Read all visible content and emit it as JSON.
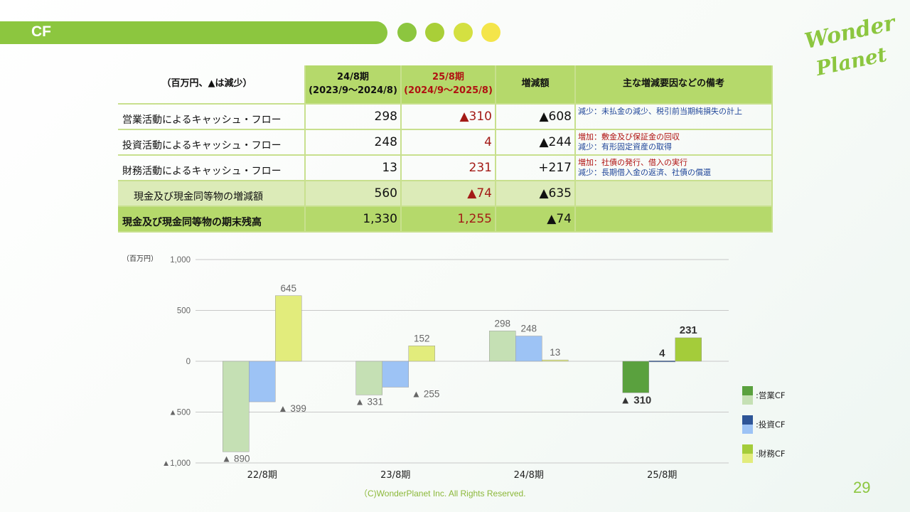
{
  "header": {
    "title": "CF",
    "dots": [
      "#8cc63f",
      "#a9cf38",
      "#d4e041",
      "#f4e54a"
    ],
    "logo_line1": "Wonder",
    "logo_line2": "Planet"
  },
  "table": {
    "unit_label": "（百万円、▲は減少）",
    "col1_line1": "24/8期",
    "col1_line2": "(2023/9～2024/8)",
    "col2_line1": "25/8期",
    "col2_line2": "(2024/9～2025/8)",
    "col3": "増減額",
    "col4": "主な増減要因などの備考",
    "rows": [
      {
        "label": "営業活動によるキャッシュ・フロー",
        "v24": "298",
        "v25": "▲310",
        "diff": "▲608",
        "note1": "減少：未払金の減少、税引前当期純損失の計上",
        "note2": ""
      },
      {
        "label": "投資活動によるキャッシュ・フロー",
        "v24": "248",
        "v25": "4",
        "diff": "▲244",
        "note1": "増加：敷金及び保証金の回収",
        "note2": "減少：有形固定資産の取得"
      },
      {
        "label": "財務活動によるキャッシュ・フロー",
        "v24": "13",
        "v25": "231",
        "diff": "+217",
        "note1": "増加：社債の発行、借入の実行",
        "note2": "減少：長期借入金の返済、社債の償還"
      },
      {
        "label": "現金及び現金同等物の増減額",
        "v24": "560",
        "v25": "▲74",
        "diff": "▲635",
        "note1": "",
        "note2": ""
      },
      {
        "label": "現金及び現金同等物の期末残高",
        "v24": "1,330",
        "v25": "1,255",
        "diff": "▲74",
        "note1": "",
        "note2": ""
      }
    ]
  },
  "chart_data": {
    "type": "bar",
    "unit_label": "（百万円）",
    "categories": [
      "22/8期",
      "23/8期",
      "24/8期",
      "25/8期"
    ],
    "ylim": [
      -1000,
      1000
    ],
    "yticks": [
      1000,
      500,
      0,
      -500,
      -1000
    ],
    "ytick_labels": [
      "1,000",
      "500",
      "0",
      "▲500",
      "▲1,000"
    ],
    "series": [
      {
        "name": "営業CF",
        "values": [
          -890,
          -331,
          298,
          -310
        ],
        "labels": [
          "▲ 890",
          "▲ 331",
          "298",
          "▲ 310"
        ],
        "colors": [
          "#c5e0b4",
          "#c5e0b4",
          "#c5e0b4",
          "#5aa13e"
        ]
      },
      {
        "name": "投資CF",
        "values": [
          -399,
          -255,
          248,
          4
        ],
        "labels": [
          "▲ 399",
          "▲ 255",
          "248",
          "4"
        ],
        "colors": [
          "#9dc3f5",
          "#9dc3f5",
          "#9dc3f5",
          "#2e5597"
        ]
      },
      {
        "name": "財務CF",
        "values": [
          645,
          152,
          13,
          231
        ],
        "labels": [
          "645",
          "152",
          "13",
          "231"
        ],
        "colors": [
          "#e2ec7c",
          "#e2ec7c",
          "#e2ec7c",
          "#a4cc3a"
        ]
      }
    ],
    "legend": [
      {
        "name": "営業CF",
        "dark": "#5aa13e",
        "light": "#c5e0b4"
      },
      {
        "name": "投資CF",
        "dark": "#2e5597",
        "light": "#9dc3f5"
      },
      {
        "name": "財務CF",
        "dark": "#a4cc3a",
        "light": "#e2ec7c"
      }
    ],
    "legend_prefix": ":",
    "legend_placement": "right",
    "grid": true
  },
  "footer": {
    "copyright": "（C)WonderPlanet Inc.  All Rights Reserved.",
    "page": "29"
  }
}
